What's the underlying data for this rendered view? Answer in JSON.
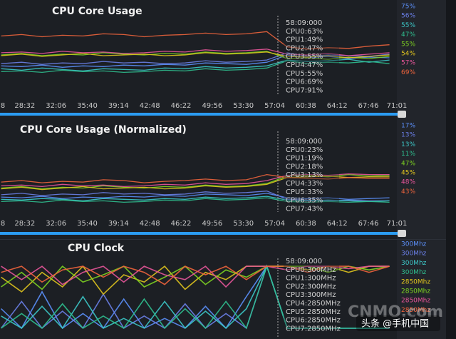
{
  "chart_data": [
    {
      "type": "line",
      "title": "CPU Core Usage",
      "x": [
        1550,
        1690,
        1830,
        1970,
        2110,
        2250,
        2390,
        2530,
        2670,
        2810,
        2950,
        3090,
        3230,
        3370,
        3510,
        3650,
        3790,
        3930,
        4070,
        4210
      ],
      "xlim": [
        1542,
        4261
      ],
      "xticks": [
        {
          "value": 1498,
          "label": "8"
        },
        {
          "value": 1712,
          "label": "28:32"
        },
        {
          "value": 1926,
          "label": "32:06"
        },
        {
          "value": 2140,
          "label": "35:40"
        },
        {
          "value": 2354,
          "label": "39:14"
        },
        {
          "value": 2568,
          "label": "42:48"
        },
        {
          "value": 2782,
          "label": "46:22"
        },
        {
          "value": 2996,
          "label": "49:56"
        },
        {
          "value": 3210,
          "label": "53:30"
        },
        {
          "value": 3424,
          "label": "57:04"
        },
        {
          "value": 3638,
          "label": "60:38"
        },
        {
          "value": 3852,
          "label": "64:12"
        },
        {
          "value": 4066,
          "label": "67:46"
        },
        {
          "value": 4261,
          "label": "71:01"
        }
      ],
      "ylim": [
        0,
        100
      ],
      "tooltip": [
        "58:09:000",
        "CPU0:63%",
        "CPU1:49%",
        "CPU2:47%",
        "CPU3:55%",
        "CPU4:47%",
        "CPU5:55%",
        "CPU6:69%",
        "CPU7:91%"
      ],
      "series": [
        {
          "color": "#5b8ff9",
          "readout": "75%",
          "values": [
            37,
            36,
            38,
            35,
            37,
            36,
            38,
            37,
            39,
            38,
            41,
            40,
            39,
            42,
            52,
            48,
            50,
            47,
            49,
            48
          ]
        },
        {
          "color": "#6a7fe8",
          "readout": "56%",
          "values": [
            40,
            42,
            39,
            41,
            40,
            43,
            41,
            42,
            40,
            41,
            44,
            42,
            43,
            45,
            55,
            50,
            52,
            51,
            50,
            53
          ]
        },
        {
          "color": "#3cc8c8",
          "readout": "55%",
          "values": [
            33,
            31,
            34,
            32,
            30,
            33,
            32,
            31,
            34,
            33,
            36,
            34,
            35,
            37,
            45,
            43,
            44,
            46,
            42,
            45
          ]
        },
        {
          "color": "#2fbf8f",
          "readout": "47%",
          "values": [
            29,
            30,
            28,
            31,
            29,
            30,
            28,
            29,
            31,
            30,
            33,
            31,
            32,
            34,
            44,
            40,
            42,
            41,
            43,
            40
          ]
        },
        {
          "color": "#7ed321",
          "readout": "55%",
          "values": [
            52,
            54,
            51,
            53,
            52,
            55,
            53,
            52,
            54,
            53,
            56,
            54,
            55,
            57,
            47,
            48,
            46,
            49,
            47,
            50
          ]
        },
        {
          "color": "#e0c41e",
          "readout": "54%",
          "values": [
            51,
            53,
            50,
            52,
            54,
            51,
            52,
            53,
            51,
            52,
            55,
            53,
            54,
            56,
            50,
            49,
            51,
            48,
            50,
            52
          ]
        },
        {
          "color": "#e8559a",
          "readout": "57%",
          "values": [
            55,
            56,
            54,
            57,
            55,
            56,
            54,
            55,
            57,
            56,
            59,
            57,
            58,
            60,
            53,
            52,
            54,
            51,
            53,
            55
          ]
        },
        {
          "color": "#f0643c",
          "readout": "69%",
          "values": [
            78,
            80,
            77,
            79,
            78,
            81,
            80,
            77,
            79,
            80,
            82,
            80,
            81,
            84,
            63,
            60,
            62,
            61,
            64,
            66
          ]
        }
      ]
    },
    {
      "type": "line",
      "title": "CPU Core Usage (Normalized)",
      "x": [
        1550,
        1690,
        1830,
        1970,
        2110,
        2250,
        2390,
        2530,
        2670,
        2810,
        2950,
        3090,
        3230,
        3370,
        3510,
        3650,
        3790,
        3930,
        4070,
        4210
      ],
      "xlim": [
        1542,
        4261
      ],
      "xticks": [
        {
          "value": 1498,
          "label": "8"
        },
        {
          "value": 1712,
          "label": "28:32"
        },
        {
          "value": 1926,
          "label": "32:06"
        },
        {
          "value": 2140,
          "label": "35:40"
        },
        {
          "value": 2354,
          "label": "39:14"
        },
        {
          "value": 2568,
          "label": "42:48"
        },
        {
          "value": 2782,
          "label": "46:22"
        },
        {
          "value": 2996,
          "label": "49:56"
        },
        {
          "value": 3210,
          "label": "53:30"
        },
        {
          "value": 3424,
          "label": "57:04"
        },
        {
          "value": 3638,
          "label": "60:38"
        },
        {
          "value": 3852,
          "label": "64:12"
        },
        {
          "value": 4066,
          "label": "67:46"
        },
        {
          "value": 4261,
          "label": "71:01"
        }
      ],
      "ylim": [
        0,
        100
      ],
      "tooltip": [
        "58:09:000",
        "CPU0:23%",
        "CPU1:19%",
        "CPU2:18%",
        "CPU3:13%",
        "CPU4:33%",
        "CPU5:33%",
        "CPU6:35%",
        "CPU7:43%"
      ],
      "series": [
        {
          "color": "#5b8ff9",
          "readout": "17%",
          "values": [
            18,
            17,
            19,
            16,
            18,
            17,
            19,
            18,
            20,
            19,
            22,
            21,
            20,
            23,
            17,
            16,
            17,
            15,
            16,
            17
          ]
        },
        {
          "color": "#6a7fe8",
          "readout": "13%",
          "values": [
            21,
            23,
            20,
            22,
            21,
            24,
            22,
            23,
            21,
            22,
            25,
            23,
            24,
            26,
            15,
            14,
            13,
            14,
            13,
            13
          ]
        },
        {
          "color": "#3cc8c8",
          "readout": "13%",
          "values": [
            15,
            14,
            16,
            15,
            13,
            16,
            15,
            14,
            16,
            15,
            18,
            16,
            17,
            19,
            14,
            13,
            14,
            13,
            12,
            13
          ]
        },
        {
          "color": "#2fbf8f",
          "readout": "11%",
          "values": [
            12,
            13,
            11,
            14,
            12,
            13,
            11,
            12,
            14,
            13,
            16,
            14,
            15,
            17,
            12,
            11,
            12,
            11,
            12,
            11
          ]
        },
        {
          "color": "#7ed321",
          "readout": "47%",
          "values": [
            30,
            32,
            29,
            31,
            30,
            33,
            31,
            30,
            32,
            31,
            34,
            32,
            33,
            36,
            46,
            47,
            45,
            48,
            46,
            47
          ]
        },
        {
          "color": "#e0c41e",
          "readout": "45%",
          "values": [
            29,
            31,
            28,
            30,
            32,
            29,
            30,
            31,
            29,
            30,
            33,
            31,
            32,
            35,
            44,
            45,
            46,
            44,
            45,
            45
          ]
        },
        {
          "color": "#e8559a",
          "readout": "48%",
          "values": [
            33,
            34,
            32,
            35,
            33,
            34,
            32,
            33,
            35,
            34,
            37,
            35,
            36,
            40,
            47,
            48,
            47,
            49,
            48,
            48
          ]
        },
        {
          "color": "#f0643c",
          "readout": "43%",
          "values": [
            38,
            40,
            37,
            39,
            38,
            41,
            40,
            37,
            39,
            40,
            42,
            40,
            41,
            48,
            44,
            43,
            42,
            44,
            43,
            43
          ]
        }
      ]
    },
    {
      "type": "line",
      "title": "CPU Clock",
      "x": [
        1550,
        1690,
        1830,
        1970,
        2110,
        2250,
        2390,
        2530,
        2670,
        2810,
        2950,
        3090,
        3230,
        3370,
        3510,
        3650,
        3790,
        3930,
        4070,
        4210
      ],
      "xlim": [
        1542,
        4261
      ],
      "ylim": [
        0,
        3000
      ],
      "tooltip": [
        "58:09:000",
        "CPU0:300MHz",
        "CPU1:300MHz",
        "CPU2:300MHz",
        "CPU3:300MHz",
        "CPU4:2850MHz",
        "CPU5:2850MHz",
        "CPU6:2850MHz",
        "CPU7:2850MHz"
      ],
      "series": [
        {
          "color": "#5b8ff9",
          "readout": "300Mhz",
          "values": [
            1100,
            300,
            1800,
            300,
            900,
            300,
            1500,
            300,
            700,
            300,
            1200,
            300,
            1600,
            2850,
            300,
            300,
            300,
            300,
            300,
            300
          ]
        },
        {
          "color": "#6a7fe8",
          "readout": "300Mhz",
          "values": [
            300,
            1400,
            300,
            1000,
            300,
            1700,
            300,
            800,
            300,
            1300,
            300,
            900,
            300,
            2850,
            300,
            300,
            300,
            300,
            300,
            300
          ]
        },
        {
          "color": "#3cc8c8",
          "readout": "300Mhz",
          "values": [
            800,
            300,
            1200,
            300,
            1600,
            300,
            700,
            300,
            1400,
            300,
            1000,
            300,
            1100,
            2850,
            300,
            300,
            300,
            300,
            300,
            300
          ]
        },
        {
          "color": "#2fbf8f",
          "readout": "300Mhz",
          "values": [
            300,
            900,
            300,
            1300,
            300,
            800,
            300,
            1500,
            300,
            1100,
            300,
            1400,
            300,
            2850,
            300,
            300,
            300,
            300,
            300,
            300
          ]
        },
        {
          "color": "#e0c41e",
          "readout": "2850Mhz",
          "values": [
            2400,
            1800,
            2600,
            2000,
            2850,
            1700,
            2500,
            2200,
            2850,
            1900,
            2600,
            2300,
            2850,
            2850,
            2850,
            2700,
            2850,
            2600,
            2850,
            2850
          ]
        },
        {
          "color": "#7ed321",
          "readout": "2850Mhz",
          "values": [
            2000,
            2600,
            1900,
            2850,
            2200,
            2500,
            2850,
            2000,
            2400,
            2850,
            2100,
            2700,
            2400,
            2850,
            2850,
            2850,
            2600,
            2850,
            2700,
            2850
          ]
        },
        {
          "color": "#e8559a",
          "readout": "2850Mhz",
          "values": [
            2850,
            2300,
            2850,
            2100,
            2600,
            2850,
            2200,
            2850,
            2500,
            2300,
            2850,
            2000,
            2850,
            2850,
            2700,
            2850,
            2850,
            2750,
            2850,
            2850
          ]
        },
        {
          "color": "#f0643c",
          "readout": "2850Mhz",
          "values": [
            2600,
            2850,
            2200,
            2700,
            2850,
            2400,
            2850,
            2600,
            2100,
            2850,
            2500,
            2850,
            2300,
            2850,
            2850,
            2600,
            2850,
            2850,
            2600,
            2850
          ]
        }
      ]
    }
  ],
  "watermark": {
    "site": "CNMO.com",
    "source": "头条 @手机中国"
  }
}
